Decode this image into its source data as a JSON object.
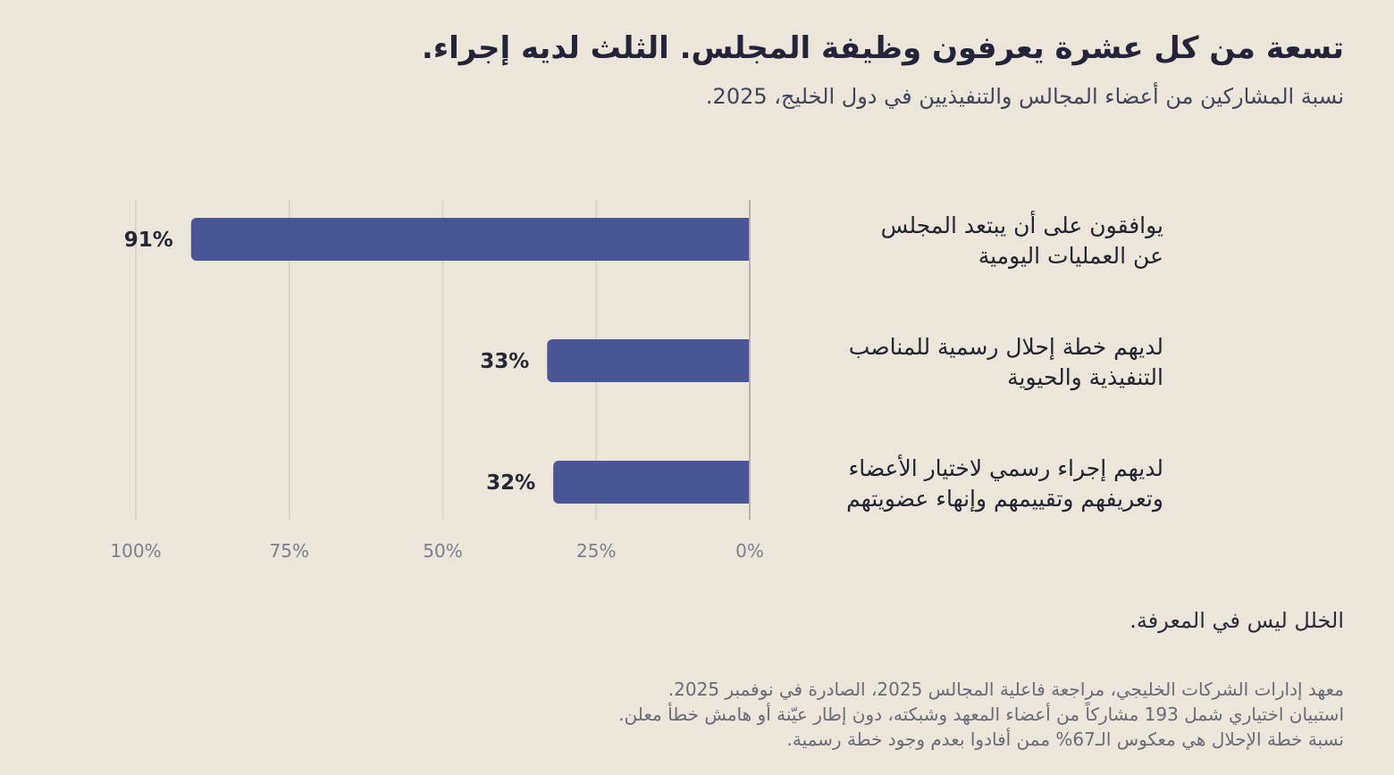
{
  "header": {
    "title": "تسعة من كل عشرة يعرفون وظيفة المجلس. الثلث لديه إجراء.",
    "subtitle": "نسبة المشاركين من أعضاء المجالس والتنفيذيين في دول الخليج، 2025."
  },
  "colors": {
    "background": "#ece5da",
    "bar": "#4a5598",
    "grid": "#d6cfc3",
    "axis": "#b9b1a4",
    "tick_text": "#7b7f8e"
  },
  "chart_data": {
    "type": "bar",
    "orientation": "horizontal",
    "direction": "right-to-left",
    "categories": [
      [
        "يوافقون على أن يبتعد المجلس",
        "عن العمليات اليومية"
      ],
      [
        "لديهم خطة إحلال رسمية للمناصب",
        "التنفيذية والحيوية"
      ],
      [
        "لديهم إجراء رسمي لاختيار الأعضاء",
        "وتعريفهم وتقييمهم وإنهاء عضويتهم"
      ]
    ],
    "values": [
      91,
      33,
      32
    ],
    "value_labels": [
      "91%",
      "33%",
      "32%"
    ],
    "xlim": [
      0,
      100
    ],
    "ticks": [
      0,
      25,
      50,
      75,
      100
    ],
    "tick_labels": [
      "0%",
      "25%",
      "50%",
      "75%",
      "100%"
    ],
    "grid": true
  },
  "footer": {
    "takeaway": "الخلل ليس في المعرفة.",
    "notes": [
      "معهد إدارات الشركات الخليجي، مراجعة فاعلية المجالس 2025، الصادرة في نوفمبر 2025.",
      "استبيان اختياري شمل 193 مشاركاً من أعضاء المعهد وشبكته، دون إطار عيّنة أو هامش خطأ معلن.",
      "نسبة خطة الإحلال هي معكوس الـ67% ممن أفادوا بعدم وجود خطة رسمية."
    ]
  }
}
